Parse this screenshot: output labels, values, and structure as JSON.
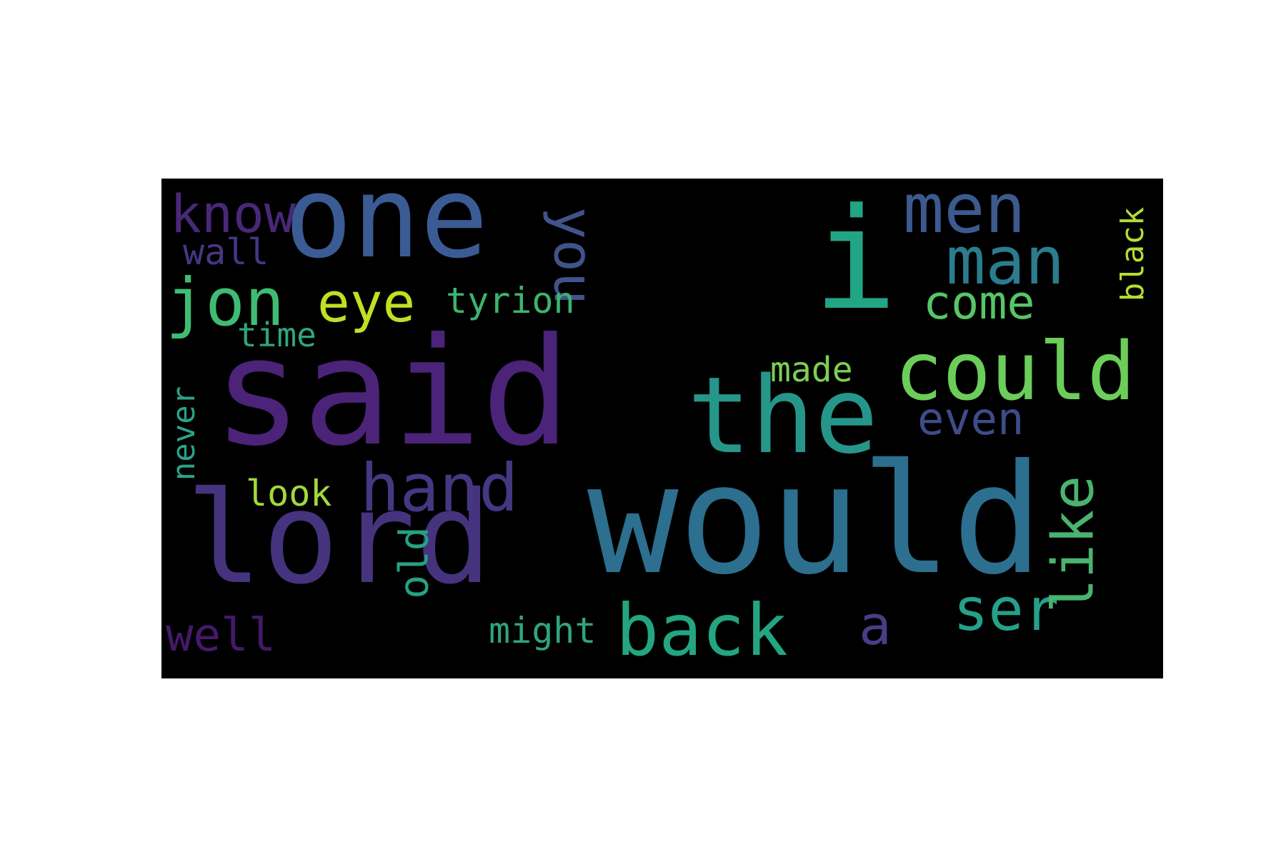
{
  "wordcloud": {
    "background": "#000000",
    "words": [
      {
        "text": "one",
        "color": "#3b5b95"
      },
      {
        "text": "said",
        "color": "#4b2379"
      },
      {
        "text": "would",
        "color": "#2c6f8f"
      },
      {
        "text": "lord",
        "color": "#46337e"
      },
      {
        "text": "the",
        "color": "#26968a"
      },
      {
        "text": "i",
        "color": "#21a585"
      },
      {
        "text": "could",
        "color": "#6ccd5a"
      },
      {
        "text": "back",
        "color": "#23a582"
      },
      {
        "text": "hand",
        "color": "#453781"
      },
      {
        "text": "jon",
        "color": "#3fbc73"
      },
      {
        "text": "men",
        "color": "#3d5a8e"
      },
      {
        "text": "man",
        "color": "#2b7c8e"
      },
      {
        "text": "you",
        "color": "#41538c"
      },
      {
        "text": "eye",
        "color": "#c2df23"
      },
      {
        "text": "know",
        "color": "#482878"
      },
      {
        "text": "come",
        "color": "#56c667"
      },
      {
        "text": "ser",
        "color": "#25a08a"
      },
      {
        "text": "like",
        "color": "#4ab36f"
      },
      {
        "text": "even",
        "color": "#3e4c8a"
      },
      {
        "text": "tyrion",
        "color": "#3cb46e"
      },
      {
        "text": "wall",
        "color": "#473685"
      },
      {
        "text": "time",
        "color": "#2fa57f"
      },
      {
        "text": "made",
        "color": "#7bd052"
      },
      {
        "text": "black",
        "color": "#b5dc36"
      },
      {
        "text": "never",
        "color": "#2ba28a"
      },
      {
        "text": "look",
        "color": "#a3d93a"
      },
      {
        "text": "old",
        "color": "#26a185"
      },
      {
        "text": "might",
        "color": "#30a47a"
      },
      {
        "text": "well",
        "color": "#44196a"
      },
      {
        "text": "a",
        "color": "#483d86"
      }
    ]
  }
}
